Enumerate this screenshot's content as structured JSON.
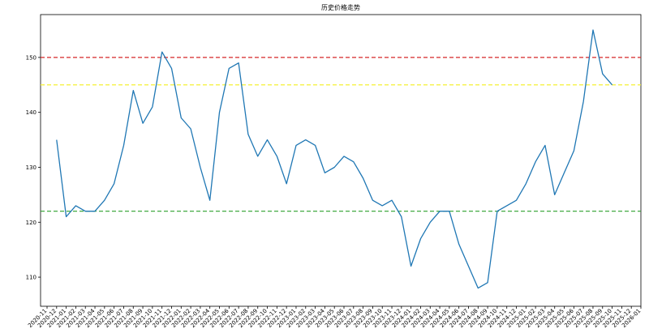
{
  "chart_data": {
    "type": "line",
    "title": "历史价格走势",
    "x": [
      "2020-12",
      "2021-01",
      "2021-02",
      "2021-03",
      "2021-04",
      "2021-05",
      "2021-06",
      "2021-07",
      "2021-08",
      "2021-09",
      "2021-10",
      "2021-11",
      "2021-12",
      "2022-01",
      "2022-02",
      "2022-03",
      "2022-04",
      "2022-05",
      "2022-06",
      "2022-07",
      "2022-08",
      "2022-09",
      "2022-10",
      "2022-11",
      "2022-12",
      "2023-01",
      "2023-02",
      "2023-03",
      "2023-04",
      "2023-05",
      "2023-06",
      "2023-07",
      "2023-08",
      "2023-09",
      "2023-10",
      "2023-11",
      "2023-12",
      "2024-01",
      "2024-02",
      "2024-03",
      "2024-04",
      "2024-05",
      "2024-06",
      "2024-07",
      "2024-08",
      "2024-09",
      "2024-10",
      "2024-11",
      "2024-12",
      "2025-01",
      "2025-02",
      "2025-03",
      "2025-04",
      "2025-05",
      "2025-06",
      "2025-07",
      "2025-08",
      "2025-09",
      "2025-10"
    ],
    "series": [
      {
        "color": "#1f77b4",
        "values": [
          135,
          121,
          123,
          122,
          122,
          124,
          127,
          134,
          144,
          138,
          141,
          151,
          148,
          139,
          137,
          130,
          124,
          140,
          148,
          149,
          136,
          132,
          135,
          132,
          127,
          134,
          135,
          134,
          129,
          130,
          132,
          131,
          128,
          124,
          123,
          124,
          121,
          112,
          117,
          120,
          122,
          122,
          116,
          112,
          108,
          109,
          122,
          123,
          124,
          127,
          131,
          134,
          125,
          129,
          133,
          142,
          155,
          147,
          145
        ]
      }
    ],
    "hlines": [
      {
        "value": 150,
        "color": "#d62728"
      },
      {
        "value": 145,
        "color": "#f5f033"
      },
      {
        "value": 122,
        "color": "#2ca02c"
      }
    ],
    "xlim": [
      "2020-11",
      "2026-01"
    ],
    "xticks": [
      "2020-11",
      "2020-12",
      "2021-01",
      "2021-02",
      "2021-03",
      "2021-04",
      "2021-05",
      "2021-06",
      "2021-07",
      "2021-08",
      "2021-09",
      "2021-10",
      "2021-11",
      "2021-12",
      "2022-01",
      "2022-02",
      "2022-03",
      "2022-04",
      "2022-05",
      "2022-06",
      "2022-07",
      "2022-08",
      "2022-09",
      "2022-10",
      "2022-11",
      "2022-12",
      "2023-01",
      "2023-02",
      "2023-03",
      "2023-04",
      "2023-05",
      "2023-06",
      "2023-07",
      "2023-08",
      "2023-09",
      "2023-10",
      "2023-11",
      "2023-12",
      "2024-01",
      "2024-02",
      "2024-03",
      "2024-04",
      "2024-05",
      "2024-06",
      "2024-07",
      "2024-08",
      "2024-09",
      "2024-10",
      "2024-11",
      "2024-12",
      "2025-01",
      "2025-02",
      "2025-03",
      "2025-04",
      "2025-05",
      "2025-06",
      "2025-07",
      "2025-08",
      "2025-09",
      "2025-10",
      "2025-11",
      "2025-12",
      "2026-01"
    ],
    "ylim": [
      104.7,
      157.8
    ],
    "yticks": [
      110,
      120,
      130,
      140,
      150
    ]
  }
}
